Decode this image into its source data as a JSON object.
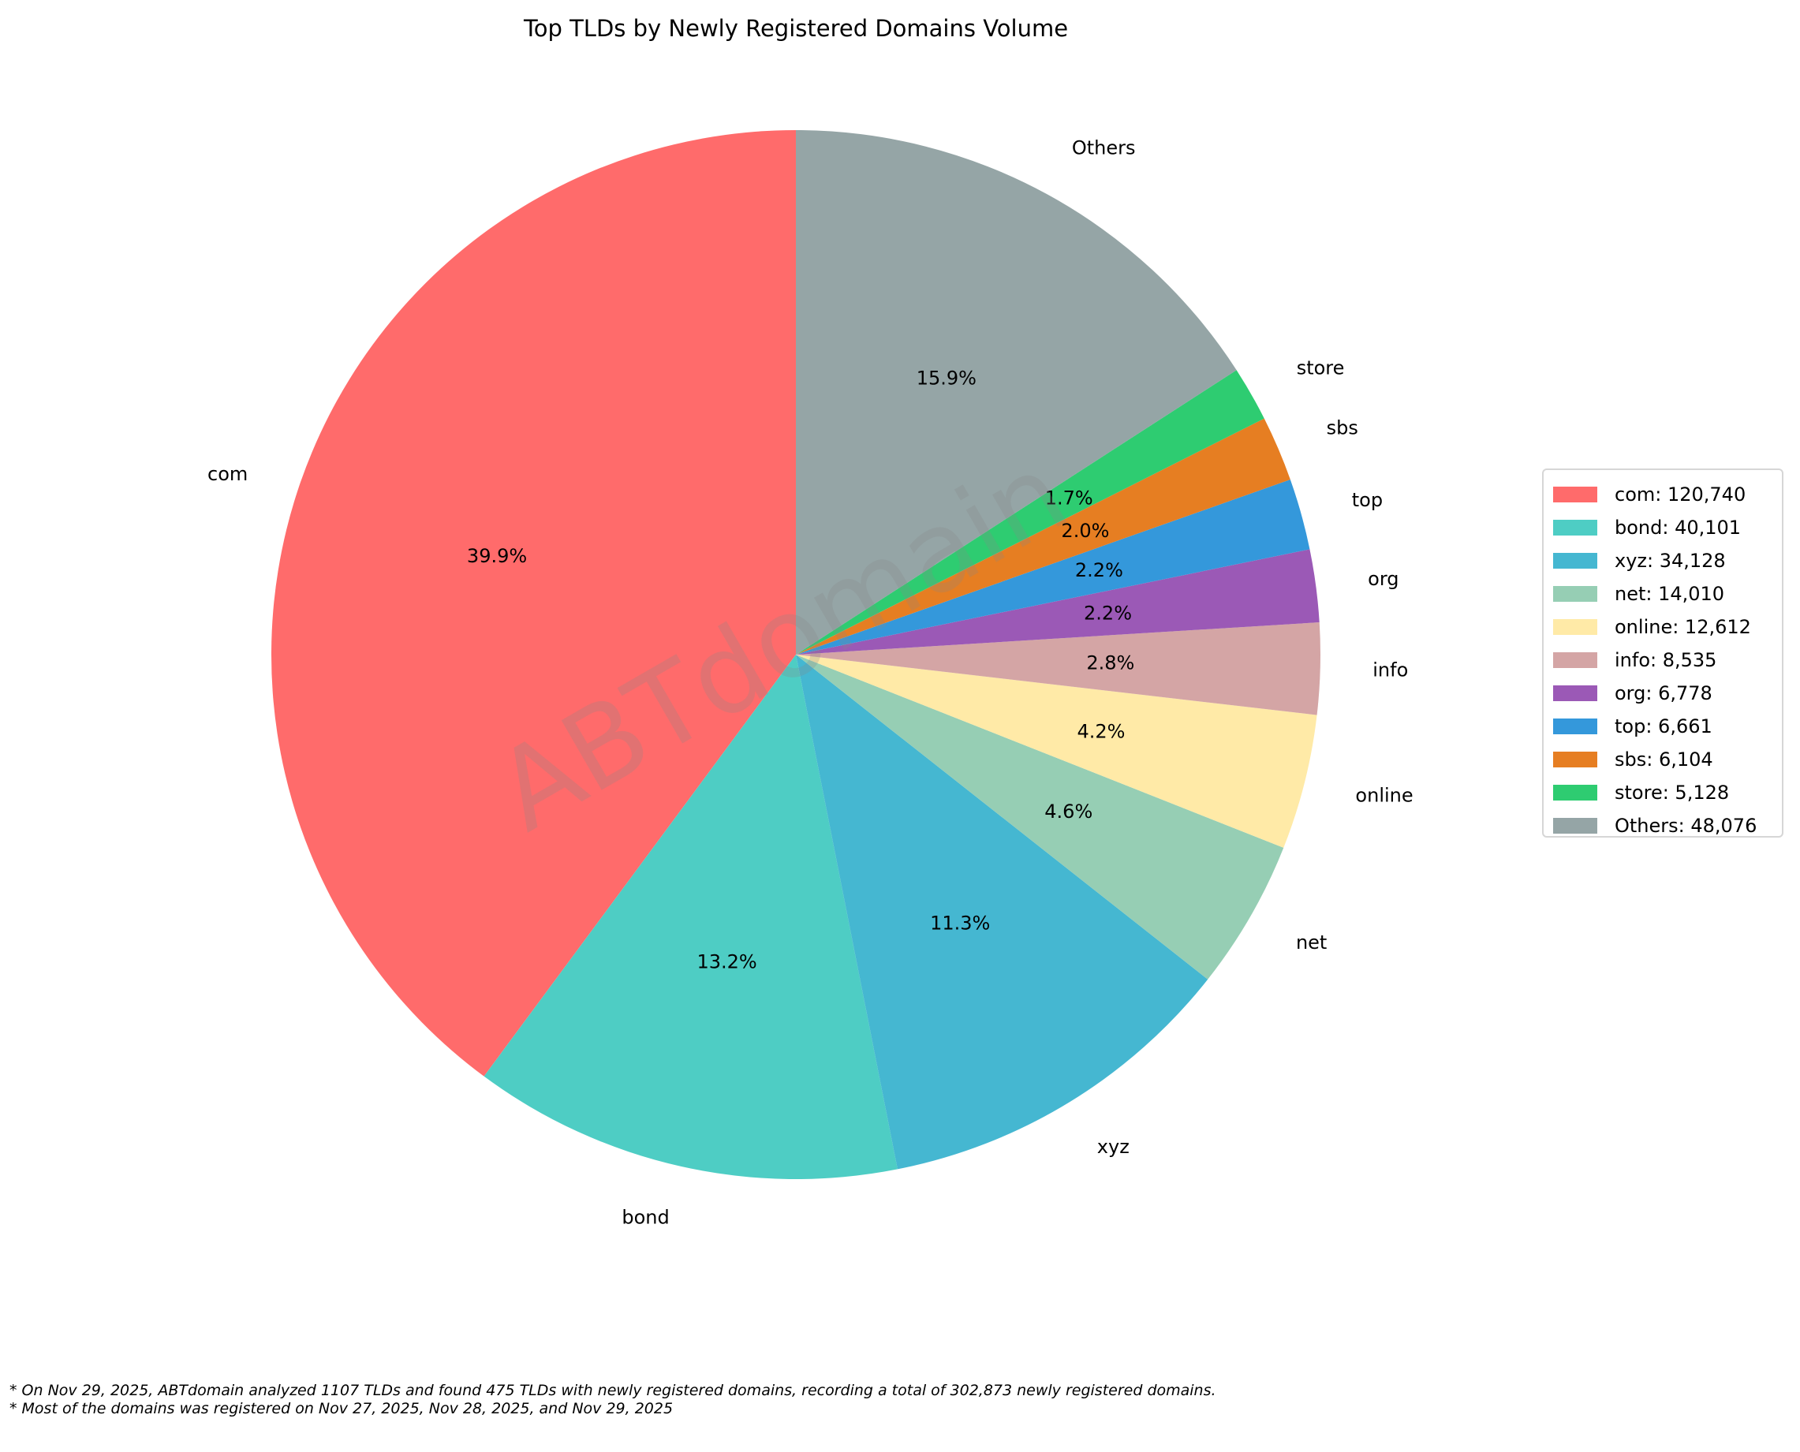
{
  "chart_data": {
    "type": "pie",
    "title": "Top TLDs by Newly Registered Domains Volume",
    "start_angle": 90,
    "direction": "counterclockwise",
    "legend_position": "right",
    "categories": [
      "com",
      "bond",
      "xyz",
      "net",
      "online",
      "info",
      "org",
      "top",
      "sbs",
      "store",
      "Others"
    ],
    "values": [
      120740,
      40101,
      34128,
      14010,
      12612,
      8535,
      6778,
      6661,
      6104,
      5128,
      48076
    ],
    "percent_labels": [
      "39.9%",
      "13.2%",
      "11.3%",
      "4.6%",
      "4.2%",
      "2.8%",
      "2.2%",
      "2.2%",
      "2.0%",
      "1.7%",
      "15.9%"
    ],
    "colors": [
      "#ff6b6b",
      "#4ecdc4",
      "#45b7d1",
      "#96ceb4",
      "#ffeaa7",
      "#d4a5a5",
      "#9b59b6",
      "#3498db",
      "#e67e22",
      "#2ecc71",
      "#95a5a6"
    ],
    "legend_entries": [
      "com: 120,740",
      "bond: 40,101",
      "xyz: 34,128",
      "net: 14,010",
      "online: 12,612",
      "info: 8,535",
      "org: 6,778",
      "top: 6,661",
      "sbs: 6,104",
      "store: 5,128",
      "Others: 48,076"
    ],
    "watermark": "ABTdomain"
  },
  "footnotes": [
    "* On Nov 29, 2025, ABTdomain analyzed 1107 TLDs and found 475 TLDs with newly registered domains, recording a total of 302,873 newly registered domains.",
    "* Most of the domains was registered on Nov 27, 2025, Nov 28, 2025, and Nov 29, 2025"
  ]
}
